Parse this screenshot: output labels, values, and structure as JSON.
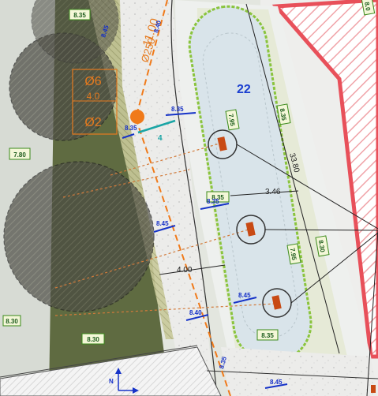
{
  "plot": {
    "number": "22"
  },
  "pipe": {
    "diameter": "Ø250",
    "depth": "11.00",
    "tree_code_top": "Ø6",
    "tree_code_mid": "4.0",
    "tree_code_bot": "Ø2"
  },
  "marker": {
    "label": "4"
  },
  "green_labels": {
    "t1": "8.35",
    "t2": "7.80",
    "t3": "7.95",
    "t4": "8.35",
    "t5": "8.35",
    "t6": "7.95",
    "t7": "8.30",
    "t8": "8.35",
    "t9": "8.30",
    "t10": "8.30",
    "t11": "8.0"
  },
  "blue_labels": {
    "b1": "8.35",
    "b2": "8.35",
    "b3": "8.40",
    "b4": "8.45",
    "b5": "8.45",
    "b6": "8.35",
    "b7": "8.40",
    "b8": "8.45",
    "b9": "8.45",
    "b10": "8.35",
    "b11": "3.46"
  },
  "dimensions": {
    "width_mid": "3.46",
    "width_low": "4.00",
    "length": "33.80"
  },
  "north": {
    "label": "N"
  },
  "colors": {
    "hedge": "#5e6a40",
    "road_gray": "#cfd3cf",
    "paving": "#e9e9e6",
    "basin": "#d8e3ea",
    "green_border": "#8ac43d",
    "hatch_red": "#e8505a",
    "pipe_orange": "#f07a1a",
    "dim_blue": "#1633c8",
    "canopy": "#3f3f3a"
  }
}
